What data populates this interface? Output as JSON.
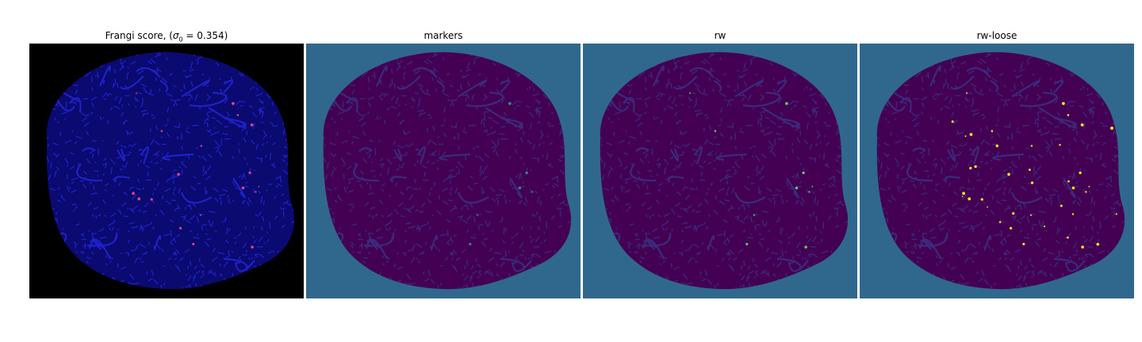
{
  "panels": [
    {
      "title_prefix": "Frangi score, (",
      "title_symbol": "σ",
      "title_sub": "0",
      "title_suffix": " = 0.354)",
      "background": "#000000",
      "blob_color": "#0a0a70",
      "vessel_color": "#2020c8",
      "highlight_color": "#e0408a"
    },
    {
      "title": "markers",
      "background": "#30688d",
      "blob_color": "#440154",
      "vessel_color": "#3b2a7a",
      "highlight_color": "#21918c"
    },
    {
      "title": "rw",
      "background": "#30688d",
      "blob_color": "#440154",
      "vessel_color": "#3b2a7a",
      "highlight_color": "#5ec962"
    },
    {
      "title": "rw-loose",
      "background": "#30688d",
      "blob_color": "#440154",
      "vessel_color": "#3b2a7a",
      "highlight_color": "#fde725"
    }
  ]
}
